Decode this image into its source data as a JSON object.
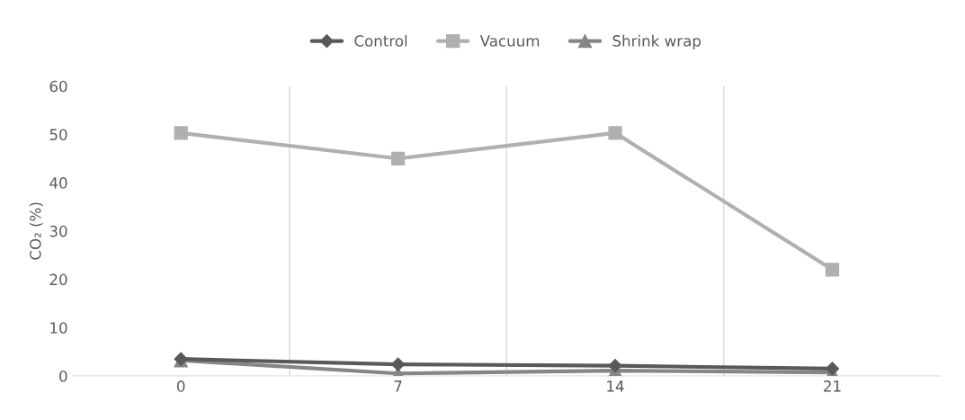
{
  "chart_data": {
    "type": "line",
    "ylabel": "CO₂ (%)",
    "categories": [
      "0",
      "7",
      "14",
      "21"
    ],
    "series": [
      {
        "name": "Control",
        "color": "#595959",
        "marker": "diamond",
        "values": [
          3.5,
          2.4,
          2.1,
          1.5
        ]
      },
      {
        "name": "Vacuum",
        "color": "#b0b0b0",
        "marker": "square",
        "values": [
          50.3,
          45,
          50.3,
          22
        ]
      },
      {
        "name": "Shrink wrap",
        "color": "#868686",
        "marker": "triangle",
        "values": [
          3.2,
          0.5,
          1.1,
          0.7
        ]
      }
    ],
    "ylim": [
      0,
      60
    ],
    "yticks": [
      0,
      10,
      20,
      30,
      40,
      50,
      60
    ],
    "grid": "x",
    "legend": "top",
    "line_style": "solid"
  }
}
